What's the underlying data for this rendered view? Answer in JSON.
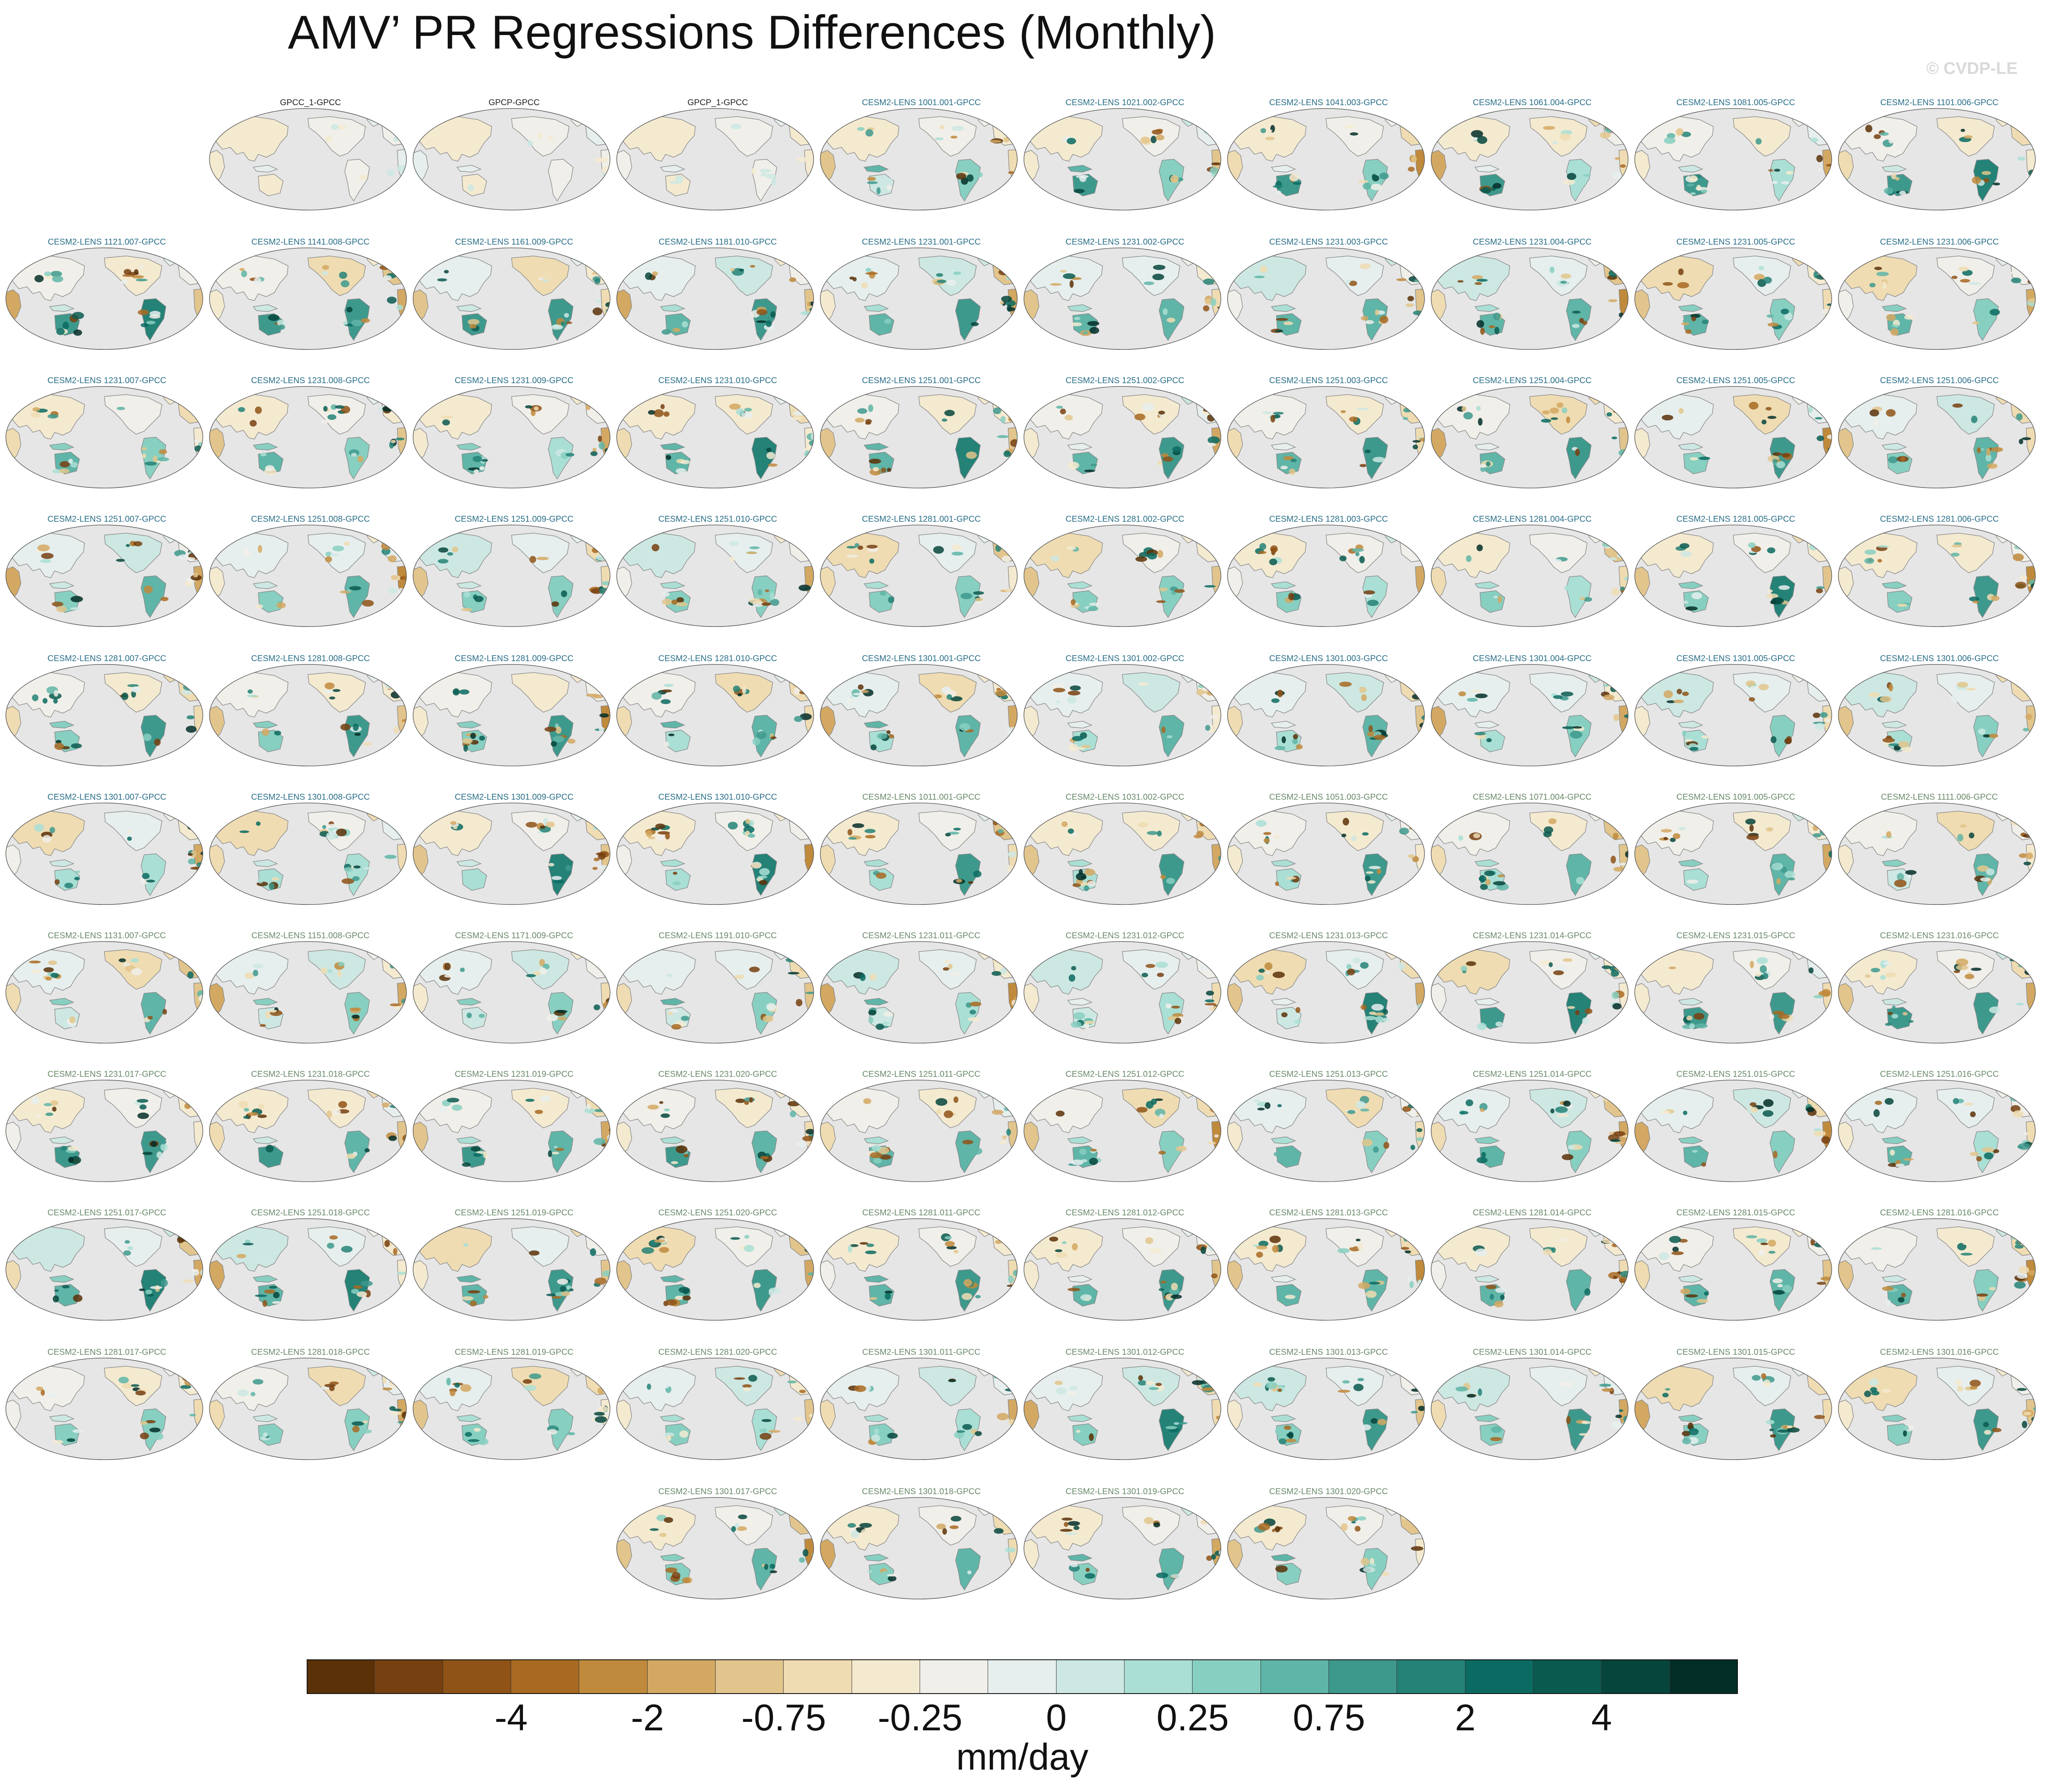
{
  "title": "AMV’ PR Regressions Differences (Monthly)",
  "watermark": "© CVDP-LE",
  "map_projection": "Robinson, Pacific-centered",
  "ocean_color": "#e6e6e6",
  "panels": [
    {
      "label": "GPCC_1-GPCC",
      "kind": "obs"
    },
    {
      "label": "GPCP-GPCC",
      "kind": "obs"
    },
    {
      "label": "GPCP_1-GPCC",
      "kind": "obs"
    },
    {
      "label": "CESM2-LENS 1001.001-GPCC",
      "kind": "ens-a"
    },
    {
      "label": "CESM2-LENS 1021.002-GPCC",
      "kind": "ens-a"
    },
    {
      "label": "CESM2-LENS 1041.003-GPCC",
      "kind": "ens-a"
    },
    {
      "label": "CESM2-LENS 1061.004-GPCC",
      "kind": "ens-a"
    },
    {
      "label": "CESM2-LENS 1081.005-GPCC",
      "kind": "ens-a"
    },
    {
      "label": "CESM2-LENS 1101.006-GPCC",
      "kind": "ens-a"
    },
    {
      "label": "CESM2-LENS 1121.007-GPCC",
      "kind": "ens-a"
    },
    {
      "label": "CESM2-LENS 1141.008-GPCC",
      "kind": "ens-a"
    },
    {
      "label": "CESM2-LENS 1161.009-GPCC",
      "kind": "ens-a"
    },
    {
      "label": "CESM2-LENS 1181.010-GPCC",
      "kind": "ens-a"
    },
    {
      "label": "CESM2-LENS 1231.001-GPCC",
      "kind": "ens-a"
    },
    {
      "label": "CESM2-LENS 1231.002-GPCC",
      "kind": "ens-a"
    },
    {
      "label": "CESM2-LENS 1231.003-GPCC",
      "kind": "ens-a"
    },
    {
      "label": "CESM2-LENS 1231.004-GPCC",
      "kind": "ens-a"
    },
    {
      "label": "CESM2-LENS 1231.005-GPCC",
      "kind": "ens-a"
    },
    {
      "label": "CESM2-LENS 1231.006-GPCC",
      "kind": "ens-a"
    },
    {
      "label": "CESM2-LENS 1231.007-GPCC",
      "kind": "ens-a"
    },
    {
      "label": "CESM2-LENS 1231.008-GPCC",
      "kind": "ens-a"
    },
    {
      "label": "CESM2-LENS 1231.009-GPCC",
      "kind": "ens-a"
    },
    {
      "label": "CESM2-LENS 1231.010-GPCC",
      "kind": "ens-a"
    },
    {
      "label": "CESM2-LENS 1251.001-GPCC",
      "kind": "ens-a"
    },
    {
      "label": "CESM2-LENS 1251.002-GPCC",
      "kind": "ens-a"
    },
    {
      "label": "CESM2-LENS 1251.003-GPCC",
      "kind": "ens-a"
    },
    {
      "label": "CESM2-LENS 1251.004-GPCC",
      "kind": "ens-a"
    },
    {
      "label": "CESM2-LENS 1251.005-GPCC",
      "kind": "ens-a"
    },
    {
      "label": "CESM2-LENS 1251.006-GPCC",
      "kind": "ens-a"
    },
    {
      "label": "CESM2-LENS 1251.007-GPCC",
      "kind": "ens-a"
    },
    {
      "label": "CESM2-LENS 1251.008-GPCC",
      "kind": "ens-a"
    },
    {
      "label": "CESM2-LENS 1251.009-GPCC",
      "kind": "ens-a"
    },
    {
      "label": "CESM2-LENS 1251.010-GPCC",
      "kind": "ens-a"
    },
    {
      "label": "CESM2-LENS 1281.001-GPCC",
      "kind": "ens-a"
    },
    {
      "label": "CESM2-LENS 1281.002-GPCC",
      "kind": "ens-a"
    },
    {
      "label": "CESM2-LENS 1281.003-GPCC",
      "kind": "ens-a"
    },
    {
      "label": "CESM2-LENS 1281.004-GPCC",
      "kind": "ens-a"
    },
    {
      "label": "CESM2-LENS 1281.005-GPCC",
      "kind": "ens-a"
    },
    {
      "label": "CESM2-LENS 1281.006-GPCC",
      "kind": "ens-a"
    },
    {
      "label": "CESM2-LENS 1281.007-GPCC",
      "kind": "ens-a"
    },
    {
      "label": "CESM2-LENS 1281.008-GPCC",
      "kind": "ens-a"
    },
    {
      "label": "CESM2-LENS 1281.009-GPCC",
      "kind": "ens-a"
    },
    {
      "label": "CESM2-LENS 1281.010-GPCC",
      "kind": "ens-a"
    },
    {
      "label": "CESM2-LENS 1301.001-GPCC",
      "kind": "ens-a"
    },
    {
      "label": "CESM2-LENS 1301.002-GPCC",
      "kind": "ens-a"
    },
    {
      "label": "CESM2-LENS 1301.003-GPCC",
      "kind": "ens-a"
    },
    {
      "label": "CESM2-LENS 1301.004-GPCC",
      "kind": "ens-a"
    },
    {
      "label": "CESM2-LENS 1301.005-GPCC",
      "kind": "ens-a"
    },
    {
      "label": "CESM2-LENS 1301.006-GPCC",
      "kind": "ens-a"
    },
    {
      "label": "CESM2-LENS 1301.007-GPCC",
      "kind": "ens-a"
    },
    {
      "label": "CESM2-LENS 1301.008-GPCC",
      "kind": "ens-a"
    },
    {
      "label": "CESM2-LENS 1301.009-GPCC",
      "kind": "ens-a"
    },
    {
      "label": "CESM2-LENS 1301.010-GPCC",
      "kind": "ens-a"
    },
    {
      "label": "CESM2-LENS 1011.001-GPCC",
      "kind": "ens-b"
    },
    {
      "label": "CESM2-LENS 1031.002-GPCC",
      "kind": "ens-b"
    },
    {
      "label": "CESM2-LENS 1051.003-GPCC",
      "kind": "ens-b"
    },
    {
      "label": "CESM2-LENS 1071.004-GPCC",
      "kind": "ens-b"
    },
    {
      "label": "CESM2-LENS 1091.005-GPCC",
      "kind": "ens-b"
    },
    {
      "label": "CESM2-LENS 1111.006-GPCC",
      "kind": "ens-b"
    },
    {
      "label": "CESM2-LENS 1131.007-GPCC",
      "kind": "ens-b"
    },
    {
      "label": "CESM2-LENS 1151.008-GPCC",
      "kind": "ens-b"
    },
    {
      "label": "CESM2-LENS 1171.009-GPCC",
      "kind": "ens-b"
    },
    {
      "label": "CESM2-LENS 1191.010-GPCC",
      "kind": "ens-b"
    },
    {
      "label": "CESM2-LENS 1231.011-GPCC",
      "kind": "ens-b"
    },
    {
      "label": "CESM2-LENS 1231.012-GPCC",
      "kind": "ens-b"
    },
    {
      "label": "CESM2-LENS 1231.013-GPCC",
      "kind": "ens-b"
    },
    {
      "label": "CESM2-LENS 1231.014-GPCC",
      "kind": "ens-b"
    },
    {
      "label": "CESM2-LENS 1231.015-GPCC",
      "kind": "ens-b"
    },
    {
      "label": "CESM2-LENS 1231.016-GPCC",
      "kind": "ens-b"
    },
    {
      "label": "CESM2-LENS 1231.017-GPCC",
      "kind": "ens-b"
    },
    {
      "label": "CESM2-LENS 1231.018-GPCC",
      "kind": "ens-b"
    },
    {
      "label": "CESM2-LENS 1231.019-GPCC",
      "kind": "ens-b"
    },
    {
      "label": "CESM2-LENS 1231.020-GPCC",
      "kind": "ens-b"
    },
    {
      "label": "CESM2-LENS 1251.011-GPCC",
      "kind": "ens-b"
    },
    {
      "label": "CESM2-LENS 1251.012-GPCC",
      "kind": "ens-b"
    },
    {
      "label": "CESM2-LENS 1251.013-GPCC",
      "kind": "ens-b"
    },
    {
      "label": "CESM2-LENS 1251.014-GPCC",
      "kind": "ens-b"
    },
    {
      "label": "CESM2-LENS 1251.015-GPCC",
      "kind": "ens-b"
    },
    {
      "label": "CESM2-LENS 1251.016-GPCC",
      "kind": "ens-b"
    },
    {
      "label": "CESM2-LENS 1251.017-GPCC",
      "kind": "ens-b"
    },
    {
      "label": "CESM2-LENS 1251.018-GPCC",
      "kind": "ens-b"
    },
    {
      "label": "CESM2-LENS 1251.019-GPCC",
      "kind": "ens-b"
    },
    {
      "label": "CESM2-LENS 1251.020-GPCC",
      "kind": "ens-b"
    },
    {
      "label": "CESM2-LENS 1281.011-GPCC",
      "kind": "ens-b"
    },
    {
      "label": "CESM2-LENS 1281.012-GPCC",
      "kind": "ens-b"
    },
    {
      "label": "CESM2-LENS 1281.013-GPCC",
      "kind": "ens-b"
    },
    {
      "label": "CESM2-LENS 1281.014-GPCC",
      "kind": "ens-b"
    },
    {
      "label": "CESM2-LENS 1281.015-GPCC",
      "kind": "ens-b"
    },
    {
      "label": "CESM2-LENS 1281.016-GPCC",
      "kind": "ens-b"
    },
    {
      "label": "CESM2-LENS 1281.017-GPCC",
      "kind": "ens-b"
    },
    {
      "label": "CESM2-LENS 1281.018-GPCC",
      "kind": "ens-b"
    },
    {
      "label": "CESM2-LENS 1281.019-GPCC",
      "kind": "ens-b"
    },
    {
      "label": "CESM2-LENS 1281.020-GPCC",
      "kind": "ens-b"
    },
    {
      "label": "CESM2-LENS 1301.011-GPCC",
      "kind": "ens-b"
    },
    {
      "label": "CESM2-LENS 1301.012-GPCC",
      "kind": "ens-b"
    },
    {
      "label": "CESM2-LENS 1301.013-GPCC",
      "kind": "ens-b"
    },
    {
      "label": "CESM2-LENS 1301.014-GPCC",
      "kind": "ens-b"
    },
    {
      "label": "CESM2-LENS 1301.015-GPCC",
      "kind": "ens-b"
    },
    {
      "label": "CESM2-LENS 1301.016-GPCC",
      "kind": "ens-b"
    },
    {
      "label": "CESM2-LENS 1301.017-GPCC",
      "kind": "ens-b"
    },
    {
      "label": "CESM2-LENS 1301.018-GPCC",
      "kind": "ens-b"
    },
    {
      "label": "CESM2-LENS 1301.019-GPCC",
      "kind": "ens-b"
    },
    {
      "label": "CESM2-LENS 1301.020-GPCC",
      "kind": "ens-b"
    }
  ],
  "colorbar": {
    "units": "mm/day",
    "tick_labels": [
      "-4",
      "-2",
      "-0.75",
      "-0.25",
      "0",
      "0.25",
      "0.75",
      "2",
      "4"
    ],
    "colors": [
      "#5b3108",
      "#774010",
      "#8f5317",
      "#a86a22",
      "#c08a3c",
      "#d3a862",
      "#e2c58c",
      "#efdcb2",
      "#f4ead0",
      "#f1efe9",
      "#e6efee",
      "#cde8e3",
      "#aadfd5",
      "#87cfc1",
      "#5fb5a7",
      "#3e998d",
      "#248277",
      "#0b6b62",
      "#0a5a50",
      "#06453c",
      "#032e28"
    ]
  }
}
